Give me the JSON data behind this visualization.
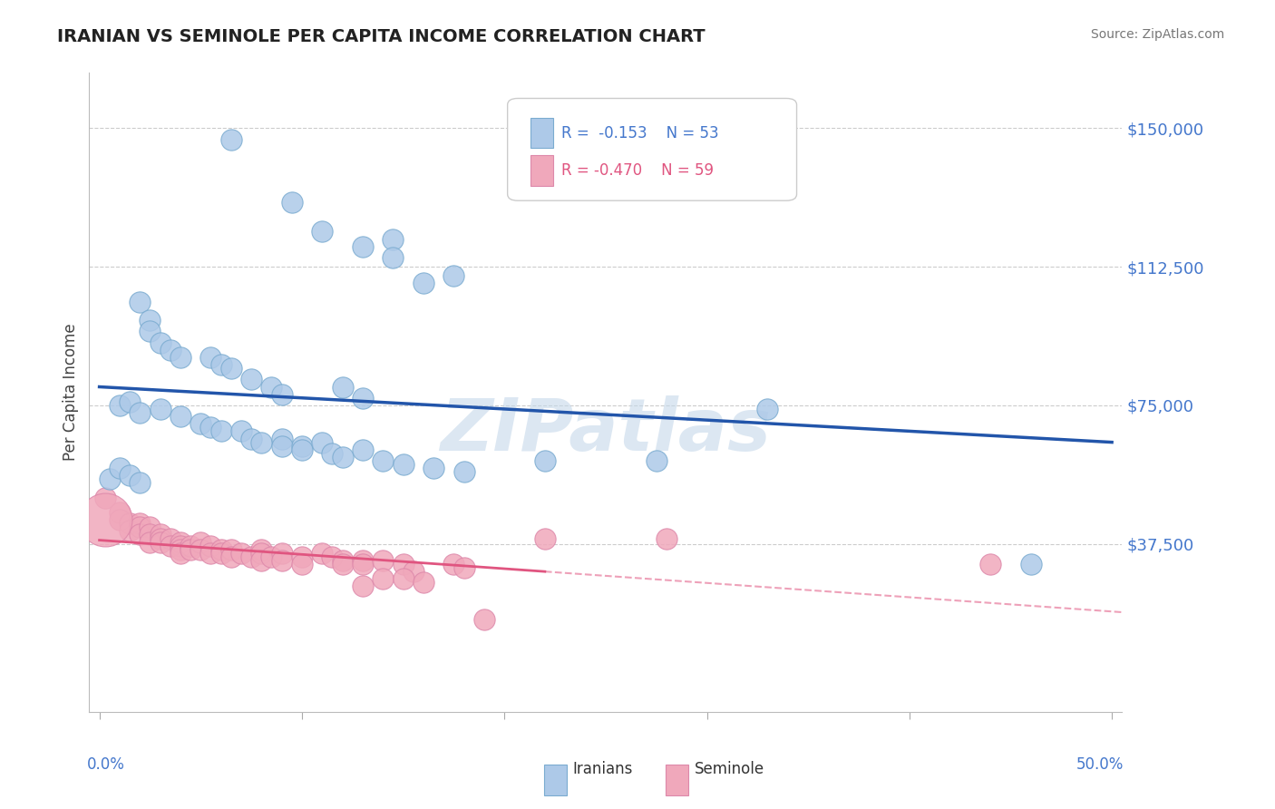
{
  "title": "IRANIAN VS SEMINOLE PER CAPITA INCOME CORRELATION CHART",
  "source": "Source: ZipAtlas.com",
  "ylabel": "Per Capita Income",
  "ylim": [
    -8000,
    165000
  ],
  "xlim": [
    -0.005,
    0.505
  ],
  "legend_iranian_r": "-0.153",
  "legend_iranian_n": "53",
  "legend_seminole_r": "-0.470",
  "legend_seminole_n": "59",
  "iranian_color": "#adc9e8",
  "iranian_edge_color": "#7aabd0",
  "iranian_line_color": "#2255aa",
  "seminole_color": "#f0a8bb",
  "seminole_edge_color": "#dd88aa",
  "seminole_line_color": "#e05580",
  "watermark": "ZIPatlas",
  "background_color": "#ffffff",
  "iranian_scatter": [
    [
      0.065,
      147000
    ],
    [
      0.095,
      130000
    ],
    [
      0.11,
      122000
    ],
    [
      0.13,
      118000
    ],
    [
      0.145,
      120000
    ],
    [
      0.145,
      115000
    ],
    [
      0.16,
      108000
    ],
    [
      0.175,
      110000
    ],
    [
      0.02,
      103000
    ],
    [
      0.025,
      98000
    ],
    [
      0.025,
      95000
    ],
    [
      0.03,
      92000
    ],
    [
      0.035,
      90000
    ],
    [
      0.04,
      88000
    ],
    [
      0.055,
      88000
    ],
    [
      0.06,
      86000
    ],
    [
      0.065,
      85000
    ],
    [
      0.075,
      82000
    ],
    [
      0.085,
      80000
    ],
    [
      0.09,
      78000
    ],
    [
      0.12,
      80000
    ],
    [
      0.13,
      77000
    ],
    [
      0.01,
      75000
    ],
    [
      0.015,
      76000
    ],
    [
      0.02,
      73000
    ],
    [
      0.03,
      74000
    ],
    [
      0.04,
      72000
    ],
    [
      0.05,
      70000
    ],
    [
      0.055,
      69000
    ],
    [
      0.06,
      68000
    ],
    [
      0.07,
      68000
    ],
    [
      0.075,
      66000
    ],
    [
      0.08,
      65000
    ],
    [
      0.09,
      66000
    ],
    [
      0.09,
      64000
    ],
    [
      0.1,
      64000
    ],
    [
      0.1,
      63000
    ],
    [
      0.11,
      65000
    ],
    [
      0.115,
      62000
    ],
    [
      0.12,
      61000
    ],
    [
      0.13,
      63000
    ],
    [
      0.14,
      60000
    ],
    [
      0.15,
      59000
    ],
    [
      0.165,
      58000
    ],
    [
      0.18,
      57000
    ],
    [
      0.22,
      60000
    ],
    [
      0.275,
      60000
    ],
    [
      0.33,
      74000
    ],
    [
      0.005,
      55000
    ],
    [
      0.01,
      58000
    ],
    [
      0.015,
      56000
    ],
    [
      0.02,
      54000
    ],
    [
      0.46,
      32000
    ]
  ],
  "seminole_scatter": [
    [
      0.003,
      50000
    ],
    [
      0.01,
      46000
    ],
    [
      0.01,
      44000
    ],
    [
      0.015,
      43000
    ],
    [
      0.015,
      41000
    ],
    [
      0.02,
      43000
    ],
    [
      0.02,
      42000
    ],
    [
      0.02,
      40000
    ],
    [
      0.025,
      42000
    ],
    [
      0.025,
      40000
    ],
    [
      0.025,
      38000
    ],
    [
      0.03,
      40000
    ],
    [
      0.03,
      39000
    ],
    [
      0.03,
      38000
    ],
    [
      0.035,
      39000
    ],
    [
      0.035,
      37000
    ],
    [
      0.04,
      38000
    ],
    [
      0.04,
      37000
    ],
    [
      0.04,
      36000
    ],
    [
      0.04,
      35000
    ],
    [
      0.045,
      37000
    ],
    [
      0.045,
      36000
    ],
    [
      0.05,
      38000
    ],
    [
      0.05,
      36000
    ],
    [
      0.055,
      37000
    ],
    [
      0.055,
      35000
    ],
    [
      0.06,
      36000
    ],
    [
      0.06,
      35000
    ],
    [
      0.065,
      36000
    ],
    [
      0.065,
      34000
    ],
    [
      0.07,
      35000
    ],
    [
      0.075,
      34000
    ],
    [
      0.08,
      36000
    ],
    [
      0.08,
      35000
    ],
    [
      0.08,
      33000
    ],
    [
      0.085,
      34000
    ],
    [
      0.09,
      35000
    ],
    [
      0.09,
      33000
    ],
    [
      0.1,
      34000
    ],
    [
      0.1,
      32000
    ],
    [
      0.11,
      35000
    ],
    [
      0.115,
      34000
    ],
    [
      0.12,
      33000
    ],
    [
      0.12,
      32000
    ],
    [
      0.13,
      33000
    ],
    [
      0.13,
      32000
    ],
    [
      0.14,
      33000
    ],
    [
      0.15,
      32000
    ],
    [
      0.155,
      30000
    ],
    [
      0.175,
      32000
    ],
    [
      0.18,
      31000
    ],
    [
      0.22,
      39000
    ],
    [
      0.28,
      39000
    ],
    [
      0.13,
      26000
    ],
    [
      0.14,
      28000
    ],
    [
      0.15,
      28000
    ],
    [
      0.16,
      27000
    ],
    [
      0.19,
      17000
    ],
    [
      0.44,
      32000
    ]
  ]
}
